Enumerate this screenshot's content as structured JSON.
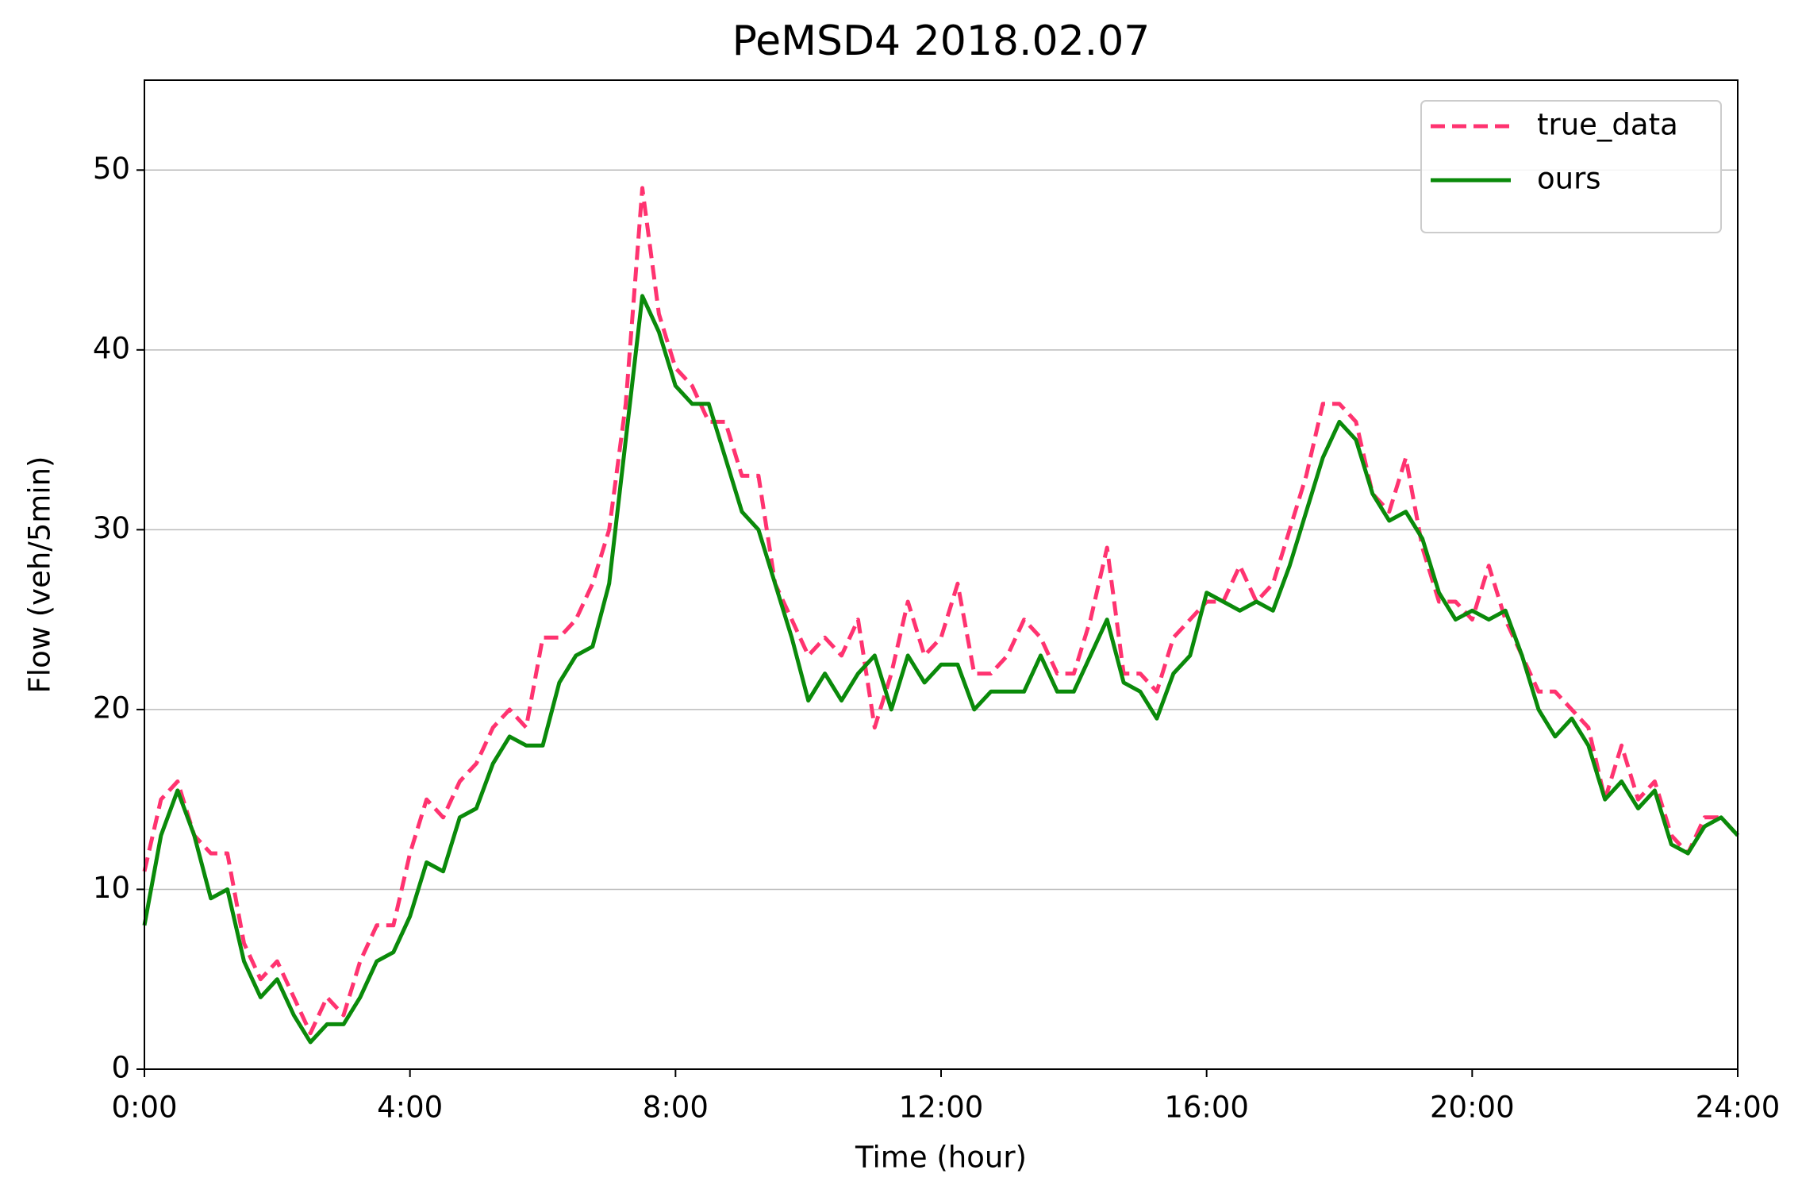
{
  "chart_data": {
    "type": "line",
    "title": "PeMSD4 2018.02.07",
    "x_label": "Time (hour)",
    "y_label": "Flow (veh/5min)",
    "x": [
      0,
      0.25,
      0.5,
      0.75,
      1,
      1.25,
      1.5,
      1.75,
      2,
      2.25,
      2.5,
      2.75,
      3,
      3.25,
      3.5,
      3.75,
      4,
      4.25,
      4.5,
      4.75,
      5,
      5.25,
      5.5,
      5.75,
      6,
      6.25,
      6.5,
      6.75,
      7,
      7.25,
      7.5,
      7.75,
      8,
      8.25,
      8.5,
      8.75,
      9,
      9.25,
      9.5,
      9.75,
      10,
      10.25,
      10.5,
      10.75,
      11,
      11.25,
      11.5,
      11.75,
      12,
      12.25,
      12.5,
      12.75,
      13,
      13.25,
      13.5,
      13.75,
      14,
      14.25,
      14.5,
      14.75,
      15,
      15.25,
      15.5,
      15.75,
      16,
      16.25,
      16.5,
      16.75,
      17,
      17.25,
      17.5,
      17.75,
      18,
      18.25,
      18.5,
      18.75,
      19,
      19.25,
      19.5,
      19.75,
      20,
      20.25,
      20.5,
      20.75,
      21,
      21.25,
      21.5,
      21.75,
      22,
      22.25,
      22.5,
      22.75,
      23,
      23.25,
      23.5,
      23.75,
      24
    ],
    "series": [
      {
        "name": "true_data",
        "color": "#ff3370",
        "style": "dashed",
        "values": [
          11,
          15,
          16,
          13,
          12,
          12,
          7,
          5,
          6,
          4,
          2,
          4,
          3,
          6,
          8,
          8,
          12,
          15,
          14,
          16,
          17,
          19,
          20,
          19,
          24,
          24,
          25,
          27,
          30,
          37,
          49,
          42,
          39,
          38,
          36,
          36,
          33,
          33,
          27,
          25,
          23,
          24,
          23,
          25,
          19,
          22,
          26,
          23,
          24,
          27,
          22,
          22,
          23,
          25,
          24,
          22,
          22,
          25,
          29,
          22,
          22,
          21,
          24,
          25,
          26,
          26,
          28,
          26,
          27,
          30,
          33,
          37,
          37,
          36,
          32,
          31,
          34,
          29,
          26,
          26,
          25,
          28,
          25,
          23,
          21,
          21,
          20,
          19,
          15,
          18,
          15,
          16,
          13,
          12,
          14,
          14,
          13
        ]
      },
      {
        "name": "ours",
        "color": "#0a8a0a",
        "style": "solid",
        "values": [
          8,
          13,
          15.5,
          13,
          9.5,
          10,
          6,
          4,
          5,
          3,
          1.5,
          2.5,
          2.5,
          4,
          6,
          6.5,
          8.5,
          11.5,
          11,
          14,
          14.5,
          17,
          18.5,
          18,
          18,
          21.5,
          23,
          23.5,
          27,
          35,
          43,
          41,
          38,
          37,
          37,
          34,
          31,
          30,
          27,
          24,
          20.5,
          22,
          20.5,
          22,
          23,
          20,
          23,
          21.5,
          22.5,
          22.5,
          20,
          21,
          21,
          21,
          23,
          21,
          21,
          23,
          25,
          21.5,
          21,
          19.5,
          22,
          23,
          26.5,
          26,
          25.5,
          26,
          25.5,
          28,
          31,
          34,
          36,
          35,
          32,
          30.5,
          31,
          29.5,
          26.5,
          25,
          25.5,
          25,
          25.5,
          23,
          20,
          18.5,
          19.5,
          18,
          15,
          16,
          14.5,
          15.5,
          12.5,
          12,
          13.5,
          14,
          13
        ]
      }
    ],
    "xlim": [
      0,
      24
    ],
    "xticks": [
      {
        "value": 0,
        "label": "0:00"
      },
      {
        "value": 4,
        "label": "4:00"
      },
      {
        "value": 8,
        "label": "8:00"
      },
      {
        "value": 12,
        "label": "12:00"
      },
      {
        "value": 16,
        "label": "16:00"
      },
      {
        "value": 20,
        "label": "20:00"
      },
      {
        "value": 24,
        "label": "24:00"
      }
    ],
    "ylim": [
      0,
      55
    ],
    "yticks": [
      0,
      10,
      20,
      30,
      40,
      50
    ],
    "grid": true,
    "legend_position": "upper right"
  }
}
